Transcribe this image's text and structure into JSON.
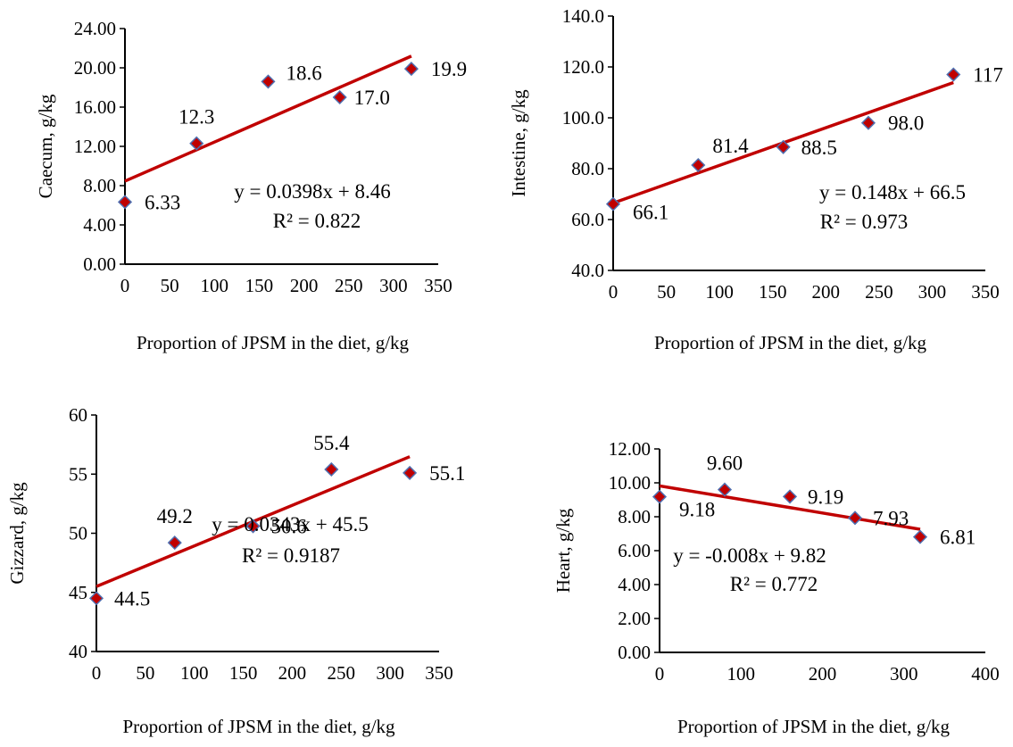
{
  "colors": {
    "marker_fill": "#c00000",
    "marker_stroke": "#4f6fb0",
    "trendline": "#c00000",
    "axis": "#000000"
  },
  "chart_data": [
    {
      "type": "scatter",
      "xlabel": "Proportion of JPSM in the diet, g/kg",
      "ylabel": "Caecum, g/kg",
      "xlim": [
        0,
        350
      ],
      "xticks": [
        "0",
        "50",
        "100",
        "150",
        "200",
        "250",
        "300",
        "350"
      ],
      "ylim": [
        0,
        24
      ],
      "yticks": [
        "0.00",
        "4.00",
        "8.00",
        "12.00",
        "16.00",
        "20.00",
        "24.00"
      ],
      "x": [
        0,
        80,
        160,
        240,
        320
      ],
      "y": [
        6.33,
        12.3,
        18.6,
        17.0,
        19.9
      ],
      "labels": [
        "6.33",
        "12.3",
        "18.6",
        "17.0",
        "19.9"
      ],
      "trendline": {
        "slope": 0.0398,
        "intercept": 8.46,
        "x_range": [
          0,
          320
        ]
      },
      "equation": "y = 0.0398x + 8.46",
      "r2": "R² = 0.822"
    },
    {
      "type": "scatter",
      "xlabel": "Proportion of JPSM in the diet, g/kg",
      "ylabel": "Intestine, g/kg",
      "xlim": [
        0,
        350
      ],
      "xticks": [
        "0",
        "50",
        "100",
        "150",
        "200",
        "250",
        "300",
        "350"
      ],
      "ylim": [
        40,
        140
      ],
      "yticks": [
        "40.0",
        "60.0",
        "80.0",
        "100.0",
        "120.0",
        "140.0"
      ],
      "x": [
        0,
        80,
        160,
        240,
        320
      ],
      "y": [
        66.1,
        81.4,
        88.5,
        98.0,
        117
      ],
      "labels": [
        "66.1",
        "81.4",
        "88.5",
        "98.0",
        "117"
      ],
      "trendline": {
        "slope": 0.148,
        "intercept": 66.5,
        "x_range": [
          0,
          320
        ]
      },
      "equation": "y = 0.148x + 66.5",
      "r2": "R² = 0.973"
    },
    {
      "type": "scatter",
      "xlabel": "Proportion of JPSM in the diet, g/kg",
      "ylabel": "Gizzard, g/kg",
      "xlim": [
        0,
        350
      ],
      "xticks": [
        "0",
        "50",
        "100",
        "150",
        "200",
        "250",
        "300",
        "350"
      ],
      "ylim": [
        40,
        60
      ],
      "yticks": [
        "40",
        "45",
        "50",
        "55",
        "60"
      ],
      "x": [
        0,
        80,
        160,
        240,
        320
      ],
      "y": [
        44.5,
        49.2,
        50.6,
        55.4,
        55.1
      ],
      "labels": [
        "44.5",
        "49.2",
        "50.6",
        "55.4",
        "55.1"
      ],
      "trendline": {
        "slope": 0.0343,
        "intercept": 45.5,
        "x_range": [
          0,
          320
        ]
      },
      "equation": "y = 0.0343x + 45.5",
      "r2": "R² = 0.9187"
    },
    {
      "type": "scatter",
      "xlabel": "Proportion of JPSM in the diet, g/kg",
      "ylabel": "Heart, g/kg",
      "xlim": [
        0,
        400
      ],
      "xticks": [
        "0",
        "100",
        "200",
        "300",
        "400"
      ],
      "ylim": [
        0,
        12
      ],
      "yticks": [
        "0.00",
        "2.00",
        "4.00",
        "6.00",
        "8.00",
        "10.00",
        "12.00"
      ],
      "x": [
        0,
        80,
        160,
        240,
        320
      ],
      "y": [
        9.18,
        9.6,
        9.19,
        7.93,
        6.81
      ],
      "labels": [
        "9.18",
        "9.60",
        "9.19",
        "7.93",
        "6.81"
      ],
      "trendline": {
        "slope": -0.008,
        "intercept": 9.82,
        "x_range": [
          0,
          320
        ]
      },
      "equation": "y = -0.008x + 9.82",
      "r2": "R² = 0.772"
    }
  ]
}
